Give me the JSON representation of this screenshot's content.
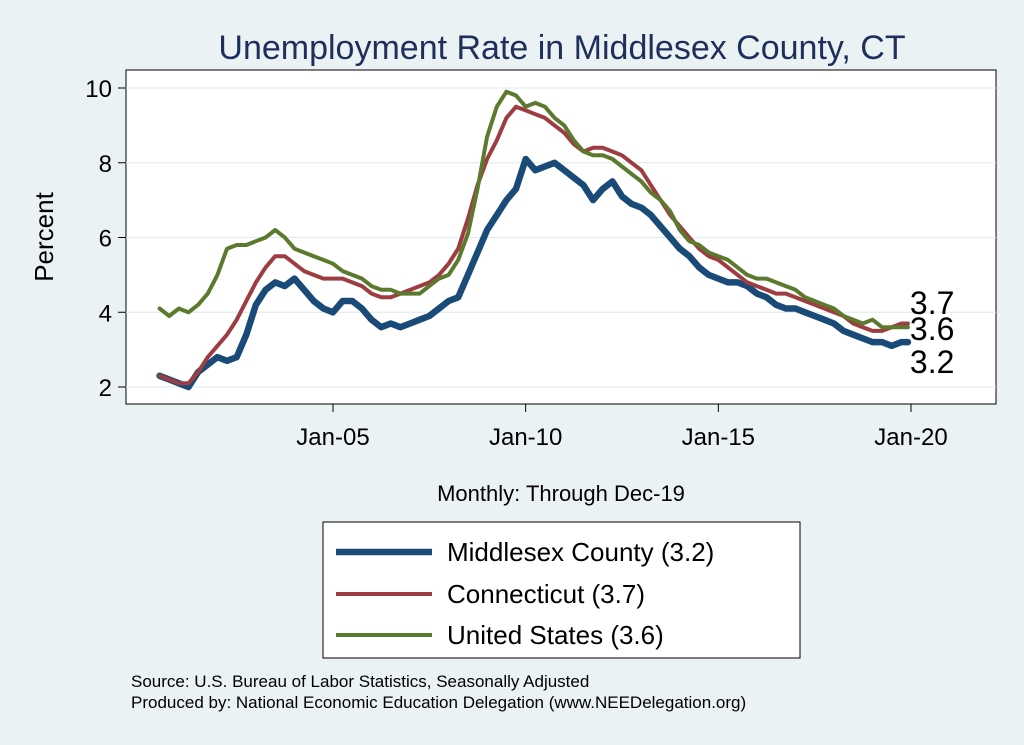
{
  "chart_data": {
    "type": "line",
    "title": "Unemployment Rate in Middlesex  County, CT",
    "xlabel": "Monthly: Through Dec-19",
    "ylabel": "Percent",
    "xlim": [
      2000.0,
      2022.0
    ],
    "ylim": [
      1.7,
      10.4
    ],
    "xticks": [
      {
        "value": 2005,
        "label": "Jan-05"
      },
      {
        "value": 2010,
        "label": "Jan-10"
      },
      {
        "value": 2015,
        "label": "Jan-15"
      },
      {
        "value": 2020,
        "label": "Jan-20"
      }
    ],
    "yticks": [
      2,
      4,
      6,
      8,
      10
    ],
    "grid": "horizontal",
    "series": [
      {
        "name": "Middlesex  County (3.2)",
        "color": "#1a4a78",
        "line_width": "thick",
        "end_label": "3.2",
        "x": [
          2000.5,
          2000.75,
          2001.0,
          2001.25,
          2001.5,
          2001.75,
          2002.0,
          2002.25,
          2002.5,
          2002.75,
          2003.0,
          2003.25,
          2003.5,
          2003.75,
          2004.0,
          2004.25,
          2004.5,
          2004.75,
          2005.0,
          2005.25,
          2005.5,
          2005.75,
          2006.0,
          2006.25,
          2006.5,
          2006.75,
          2007.0,
          2007.25,
          2007.5,
          2007.75,
          2008.0,
          2008.25,
          2008.5,
          2008.75,
          2009.0,
          2009.25,
          2009.5,
          2009.75,
          2010.0,
          2010.25,
          2010.5,
          2010.75,
          2011.0,
          2011.25,
          2011.5,
          2011.75,
          2012.0,
          2012.25,
          2012.5,
          2012.75,
          2013.0,
          2013.25,
          2013.5,
          2013.75,
          2014.0,
          2014.25,
          2014.5,
          2014.75,
          2015.0,
          2015.25,
          2015.5,
          2015.75,
          2016.0,
          2016.25,
          2016.5,
          2016.75,
          2017.0,
          2017.25,
          2017.5,
          2017.75,
          2018.0,
          2018.25,
          2018.5,
          2018.75,
          2019.0,
          2019.25,
          2019.5,
          2019.75,
          2019.92
        ],
        "values": [
          2.3,
          2.2,
          2.1,
          2.0,
          2.4,
          2.6,
          2.8,
          2.7,
          2.8,
          3.4,
          4.2,
          4.6,
          4.8,
          4.7,
          4.9,
          4.6,
          4.3,
          4.1,
          4.0,
          4.3,
          4.3,
          4.1,
          3.8,
          3.6,
          3.7,
          3.6,
          3.7,
          3.8,
          3.9,
          4.1,
          4.3,
          4.4,
          5.0,
          5.6,
          6.2,
          6.6,
          7.0,
          7.3,
          8.1,
          7.8,
          7.9,
          8.0,
          7.8,
          7.6,
          7.4,
          7.0,
          7.3,
          7.5,
          7.1,
          6.9,
          6.8,
          6.6,
          6.3,
          6.0,
          5.7,
          5.5,
          5.2,
          5.0,
          4.9,
          4.8,
          4.8,
          4.7,
          4.5,
          4.4,
          4.2,
          4.1,
          4.1,
          4.0,
          3.9,
          3.8,
          3.7,
          3.5,
          3.4,
          3.3,
          3.2,
          3.2,
          3.1,
          3.2,
          3.2
        ]
      },
      {
        "name": "Connecticut (3.7)",
        "color": "#9e3d41",
        "line_width": "normal",
        "end_label": "3.7",
        "x": [
          2000.5,
          2000.75,
          2001.0,
          2001.25,
          2001.5,
          2001.75,
          2002.0,
          2002.25,
          2002.5,
          2002.75,
          2003.0,
          2003.25,
          2003.5,
          2003.75,
          2004.0,
          2004.25,
          2004.5,
          2004.75,
          2005.0,
          2005.25,
          2005.5,
          2005.75,
          2006.0,
          2006.25,
          2006.5,
          2006.75,
          2007.0,
          2007.25,
          2007.5,
          2007.75,
          2008.0,
          2008.25,
          2008.5,
          2008.75,
          2009.0,
          2009.25,
          2009.5,
          2009.75,
          2010.0,
          2010.25,
          2010.5,
          2010.75,
          2011.0,
          2011.25,
          2011.5,
          2011.75,
          2012.0,
          2012.25,
          2012.5,
          2012.75,
          2013.0,
          2013.25,
          2013.5,
          2013.75,
          2014.0,
          2014.25,
          2014.5,
          2014.75,
          2015.0,
          2015.25,
          2015.5,
          2015.75,
          2016.0,
          2016.25,
          2016.5,
          2016.75,
          2017.0,
          2017.25,
          2017.5,
          2017.75,
          2018.0,
          2018.25,
          2018.5,
          2018.75,
          2019.0,
          2019.25,
          2019.5,
          2019.75,
          2019.92
        ],
        "values": [
          2.3,
          2.2,
          2.1,
          2.1,
          2.4,
          2.8,
          3.1,
          3.4,
          3.8,
          4.3,
          4.8,
          5.2,
          5.5,
          5.5,
          5.3,
          5.1,
          5.0,
          4.9,
          4.9,
          4.9,
          4.8,
          4.7,
          4.5,
          4.4,
          4.4,
          4.5,
          4.6,
          4.7,
          4.8,
          5.0,
          5.3,
          5.7,
          6.5,
          7.4,
          8.1,
          8.6,
          9.2,
          9.5,
          9.4,
          9.3,
          9.2,
          9.0,
          8.8,
          8.5,
          8.3,
          8.4,
          8.4,
          8.3,
          8.2,
          8.0,
          7.8,
          7.4,
          7.0,
          6.6,
          6.3,
          6.0,
          5.7,
          5.5,
          5.4,
          5.2,
          5.0,
          4.8,
          4.7,
          4.6,
          4.5,
          4.5,
          4.4,
          4.3,
          4.2,
          4.1,
          4.0,
          3.9,
          3.7,
          3.6,
          3.5,
          3.5,
          3.6,
          3.7,
          3.7
        ]
      },
      {
        "name": "United States (3.6)",
        "color": "#5c7a2e",
        "line_width": "normal",
        "end_label": "3.6",
        "x": [
          2000.5,
          2000.75,
          2001.0,
          2001.25,
          2001.5,
          2001.75,
          2002.0,
          2002.25,
          2002.5,
          2002.75,
          2003.0,
          2003.25,
          2003.5,
          2003.75,
          2004.0,
          2004.25,
          2004.5,
          2004.75,
          2005.0,
          2005.25,
          2005.5,
          2005.75,
          2006.0,
          2006.25,
          2006.5,
          2006.75,
          2007.0,
          2007.25,
          2007.5,
          2007.75,
          2008.0,
          2008.25,
          2008.5,
          2008.75,
          2009.0,
          2009.25,
          2009.5,
          2009.75,
          2010.0,
          2010.25,
          2010.5,
          2010.75,
          2011.0,
          2011.25,
          2011.5,
          2011.75,
          2012.0,
          2012.25,
          2012.5,
          2012.75,
          2013.0,
          2013.25,
          2013.5,
          2013.75,
          2014.0,
          2014.25,
          2014.5,
          2014.75,
          2015.0,
          2015.25,
          2015.5,
          2015.75,
          2016.0,
          2016.25,
          2016.5,
          2016.75,
          2017.0,
          2017.25,
          2017.5,
          2017.75,
          2018.0,
          2018.25,
          2018.5,
          2018.75,
          2019.0,
          2019.25,
          2019.5,
          2019.75,
          2019.92
        ],
        "values": [
          4.1,
          3.9,
          4.1,
          4.0,
          4.2,
          4.5,
          5.0,
          5.7,
          5.8,
          5.8,
          5.9,
          6.0,
          6.2,
          6.0,
          5.7,
          5.6,
          5.5,
          5.4,
          5.3,
          5.1,
          5.0,
          4.9,
          4.7,
          4.6,
          4.6,
          4.5,
          4.5,
          4.5,
          4.7,
          4.9,
          5.0,
          5.4,
          6.1,
          7.3,
          8.7,
          9.5,
          9.9,
          9.8,
          9.5,
          9.6,
          9.5,
          9.2,
          9.0,
          8.6,
          8.3,
          8.2,
          8.2,
          8.1,
          7.9,
          7.7,
          7.5,
          7.2,
          7.0,
          6.7,
          6.2,
          5.9,
          5.8,
          5.6,
          5.5,
          5.4,
          5.2,
          5.0,
          4.9,
          4.9,
          4.8,
          4.7,
          4.6,
          4.4,
          4.3,
          4.2,
          4.1,
          3.9,
          3.8,
          3.7,
          3.8,
          3.6,
          3.6,
          3.6,
          3.6
        ]
      }
    ],
    "legend": {
      "position": "bottom-center",
      "entries": [
        "Middlesex  County (3.2)",
        "Connecticut (3.7)",
        "United States (3.6)"
      ]
    }
  },
  "footer": {
    "source": "Source: U.S. Bureau of Labor Statistics, Seasonally Adjusted",
    "producer": "Produced by: National Economic Education Delegation (www.NEEDelegation.org)"
  }
}
